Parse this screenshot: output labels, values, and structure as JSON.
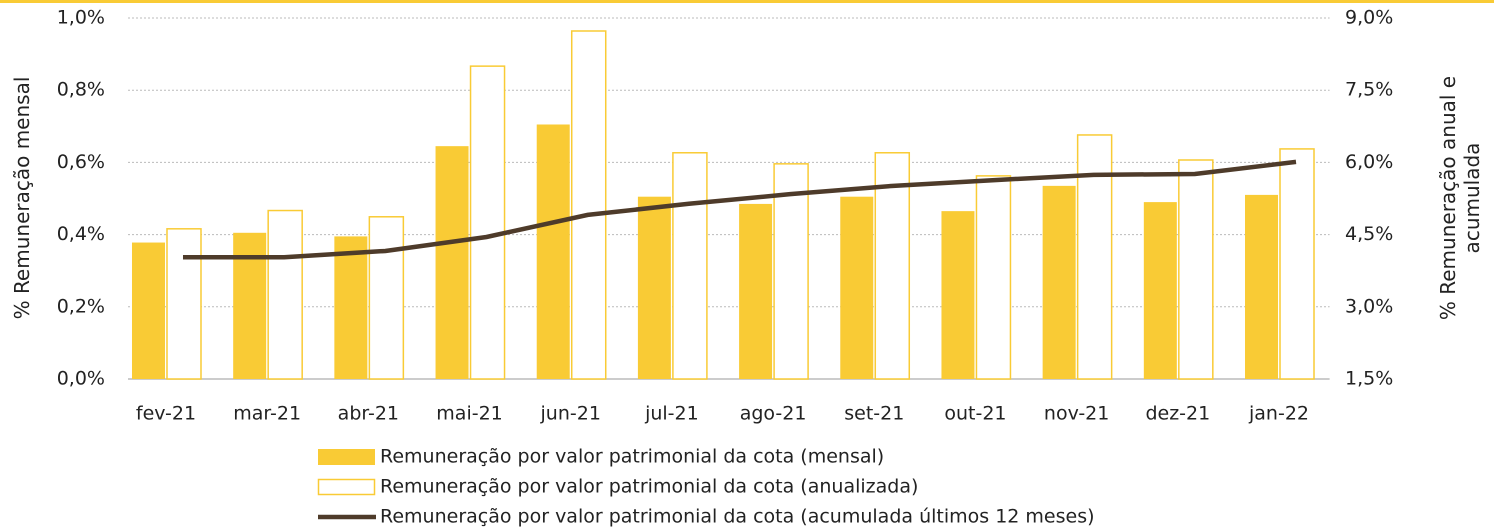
{
  "chart_data": {
    "type": "bar",
    "categories": [
      "fev-21",
      "mar-21",
      "abr-21",
      "mai-21",
      "jun-21",
      "jul-21",
      "ago-21",
      "set-21",
      "out-21",
      "nov-21",
      "dez-21",
      "jan-22"
    ],
    "y_label": "% Remuneração mensal",
    "y2_label": "% Remuneração anual e acumulada",
    "ylim": [
      0,
      1.0
    ],
    "yticks": [
      {
        "value": 0,
        "label": "0,0%"
      },
      {
        "value": 0.2,
        "label": "0,2%"
      },
      {
        "value": 0.4,
        "label": "0,4%"
      },
      {
        "value": 0.6,
        "label": "0,6%"
      },
      {
        "value": 0.8,
        "label": "0,8%"
      },
      {
        "value": 1.0,
        "label": "1,0%"
      }
    ],
    "y2lim": [
      1.5,
      9.0
    ],
    "y2ticks": [
      {
        "value": 1.5,
        "label": "1,5%"
      },
      {
        "value": 3.0,
        "label": "3,0%"
      },
      {
        "value": 4.5,
        "label": "4,5%"
      },
      {
        "value": 6.0,
        "label": "6,0%"
      },
      {
        "value": 7.5,
        "label": "7,5%"
      },
      {
        "value": 9.0,
        "label": "9,0%"
      }
    ],
    "grid": true,
    "series": [
      {
        "name": "Remuneração por valor patrimonial da cota (mensal)",
        "type": "bar",
        "color": "#f9cb35",
        "values": [
          0.378,
          0.405,
          0.395,
          0.645,
          0.705,
          0.505,
          0.485,
          0.505,
          0.465,
          0.535,
          0.49,
          0.51
        ]
      },
      {
        "name": "Remuneração por valor patrimonial da cota (anualizada)",
        "type": "bar-outline",
        "axis": "y2",
        "color": "#f9cb35",
        "values": [
          4.62,
          5.0,
          4.87,
          8.0,
          8.73,
          6.2,
          5.97,
          6.2,
          5.72,
          6.57,
          6.05,
          6.28
        ]
      },
      {
        "name": "Remuneração por valor patrimonial da cota (acumulada últimos 12 meses)",
        "type": "line",
        "axis": "y2",
        "color": "#4e3b2a",
        "values": [
          4.03,
          4.03,
          4.16,
          4.45,
          4.91,
          5.14,
          5.34,
          5.51,
          5.63,
          5.74,
          5.76,
          6.01
        ]
      }
    ]
  }
}
